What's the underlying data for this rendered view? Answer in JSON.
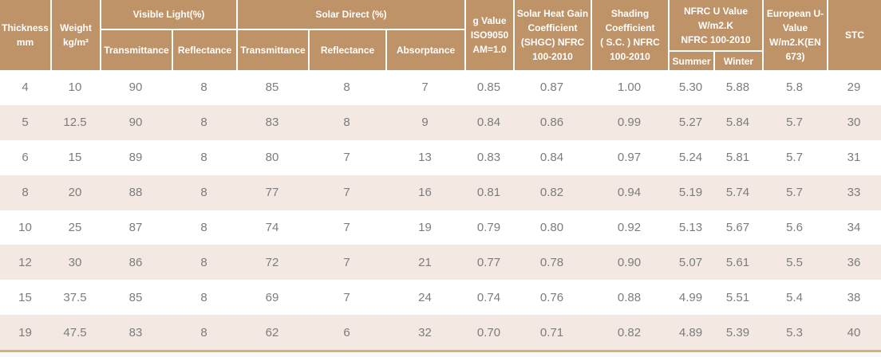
{
  "colors": {
    "header_bg": "#bf9368",
    "header_text": "#ffffff",
    "row_bg": "#ffffff",
    "row_alt_bg": "#f3e9e2",
    "data_text": "#7b7c7e",
    "bottom_line": "#d4b47e",
    "footer_bg": "#fbfaf8"
  },
  "table": {
    "header": {
      "thickness": "Thickness\nmm",
      "weight": "Weight\nkg/m²",
      "visible_light_group": "Visible Light(%)",
      "visible_light_transmittance": "Transmittance",
      "visible_light_reflectance": "Reflectance",
      "solar_direct_group": "Solar Direct (%)",
      "solar_direct_transmittance": "Transmittance",
      "solar_direct_reflectance": "Reflectance",
      "solar_direct_absorptance": "Absorptance",
      "g_value": "g Value\nISO9050\nAM=1.0",
      "shgc": "Solar Heat Gain\nCoefficient\n(SHGC) NFRC\n100-2010",
      "shading_coefficient": "Shading\nCoefficient\n( S.C. ) NFRC\n100-2010",
      "nfrc_u_value_group": "NFRC U Value\nW/m2.K\nNFRC 100-2010",
      "nfrc_summer": "Summer",
      "nfrc_winter": "Winter",
      "european_u_value": "European U-\nValue\nW/m2.K(EN\n673)",
      "stc": "STC"
    },
    "column_keys": [
      "thickness_mm",
      "weight_kg_m2",
      "visible_light_transmittance",
      "visible_light_reflectance",
      "solar_direct_transmittance",
      "solar_direct_reflectance",
      "solar_direct_absorptance",
      "g_value",
      "shgc",
      "shading_coefficient",
      "nfrc_u_summer",
      "nfrc_u_winter",
      "european_u_value",
      "stc"
    ],
    "rows": [
      [
        "4",
        "10",
        "90",
        "8",
        "85",
        "8",
        "7",
        "0.85",
        "0.87",
        "1.00",
        "5.30",
        "5.88",
        "5.8",
        "29"
      ],
      [
        "5",
        "12.5",
        "90",
        "8",
        "83",
        "8",
        "9",
        "0.84",
        "0.86",
        "0.99",
        "5.27",
        "5.84",
        "5.7",
        "30"
      ],
      [
        "6",
        "15",
        "89",
        "8",
        "80",
        "7",
        "13",
        "0.83",
        "0.84",
        "0.97",
        "5.24",
        "5.81",
        "5.7",
        "31"
      ],
      [
        "8",
        "20",
        "88",
        "8",
        "77",
        "7",
        "16",
        "0.81",
        "0.82",
        "0.94",
        "5.19",
        "5.74",
        "5.7",
        "33"
      ],
      [
        "10",
        "25",
        "87",
        "8",
        "74",
        "7",
        "19",
        "0.79",
        "0.80",
        "0.92",
        "5.13",
        "5.67",
        "5.6",
        "34"
      ],
      [
        "12",
        "30",
        "86",
        "8",
        "72",
        "7",
        "21",
        "0.77",
        "0.78",
        "0.90",
        "5.07",
        "5.61",
        "5.5",
        "36"
      ],
      [
        "15",
        "37.5",
        "85",
        "8",
        "69",
        "7",
        "24",
        "0.74",
        "0.76",
        "0.88",
        "4.99",
        "5.51",
        "5.4",
        "38"
      ],
      [
        "19",
        "47.5",
        "83",
        "8",
        "62",
        "6",
        "32",
        "0.70",
        "0.71",
        "0.82",
        "4.89",
        "5.39",
        "5.3",
        "40"
      ]
    ]
  }
}
